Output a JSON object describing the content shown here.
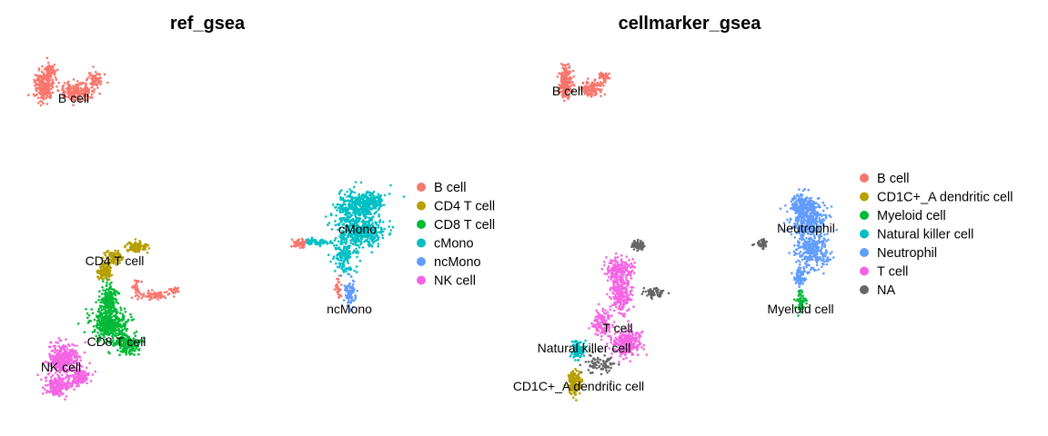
{
  "chart_data": [
    {
      "type": "scatter",
      "title": "ref_gsea",
      "legend_position": "right",
      "grid": false,
      "axes_visible": false,
      "legend": [
        {
          "label": "B cell",
          "color": "#F8766D"
        },
        {
          "label": "CD4 T cell",
          "color": "#B79F00"
        },
        {
          "label": "CD8 T cell",
          "color": "#00BA38"
        },
        {
          "label": "cMono",
          "color": "#00BFC4"
        },
        {
          "label": "ncMono",
          "color": "#619CFF"
        },
        {
          "label": "NK cell",
          "color": "#F564E3"
        }
      ],
      "cluster_labels": [
        {
          "text": "B cell"
        },
        {
          "text": "CD4 T cell"
        },
        {
          "text": "CD8 T cell"
        },
        {
          "text": "NK cell"
        },
        {
          "text": "cMono"
        },
        {
          "text": "ncMono"
        }
      ]
    },
    {
      "type": "scatter",
      "title": "cellmarker_gsea",
      "legend_position": "right",
      "grid": false,
      "axes_visible": false,
      "legend": [
        {
          "label": "B cell",
          "color": "#F8766D"
        },
        {
          "label": "CD1C+_A dendritic cell",
          "color": "#B79F00"
        },
        {
          "label": "Myeloid cell",
          "color": "#00BA38"
        },
        {
          "label": "Natural killer cell",
          "color": "#00BFC4"
        },
        {
          "label": "Neutrophil",
          "color": "#619CFF"
        },
        {
          "label": "T cell",
          "color": "#F564E3"
        },
        {
          "label": "NA",
          "color": "#666666"
        }
      ],
      "cluster_labels": [
        {
          "text": "B cell"
        },
        {
          "text": "Neutrophil"
        },
        {
          "text": "T cell"
        },
        {
          "text": "Natural killer cell"
        },
        {
          "text": "Myeloid cell"
        },
        {
          "text": "CD1C+_A dendritic cell"
        }
      ]
    }
  ]
}
